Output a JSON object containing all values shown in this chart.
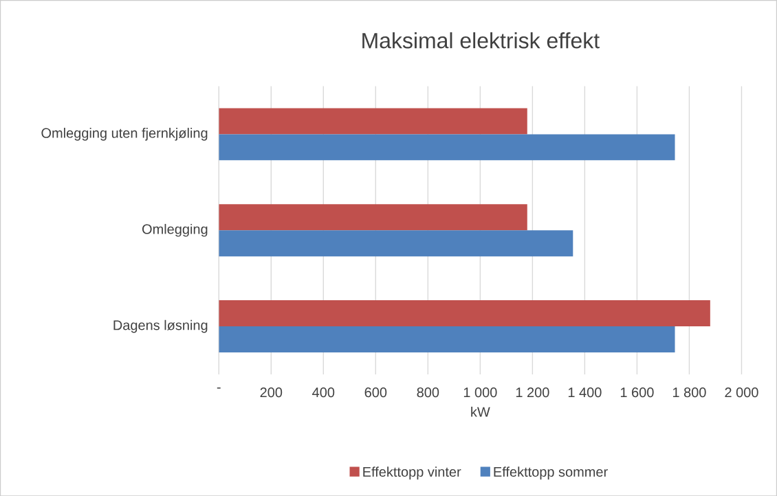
{
  "chart_data": {
    "type": "bar",
    "orientation": "horizontal",
    "title": "Maksimal elektrisk effekt",
    "xlabel": "kW",
    "categories": [
      "Omlegging uten fjernkjøling",
      "Omlegging",
      "Dagens løsning"
    ],
    "series": [
      {
        "name": "Effekttopp vinter",
        "color": "#c0504d",
        "values": [
          1180,
          1180,
          1880
        ]
      },
      {
        "name": "Effekttopp sommer",
        "color": "#4f81bd",
        "values": [
          1745,
          1355,
          1745
        ]
      }
    ],
    "xlim": [
      0,
      2000
    ],
    "xticks": [
      {
        "value": 0,
        "label": "-"
      },
      200,
      400,
      600,
      800,
      {
        "value": 1000,
        "label": "1 000"
      },
      {
        "value": 1200,
        "label": "1 200"
      },
      {
        "value": 1400,
        "label": "1 400"
      },
      {
        "value": 1600,
        "label": "1 600"
      },
      {
        "value": 1800,
        "label": "1 800"
      },
      {
        "value": 2000,
        "label": "2 000"
      }
    ],
    "grid": "x",
    "legend": "bottom"
  }
}
